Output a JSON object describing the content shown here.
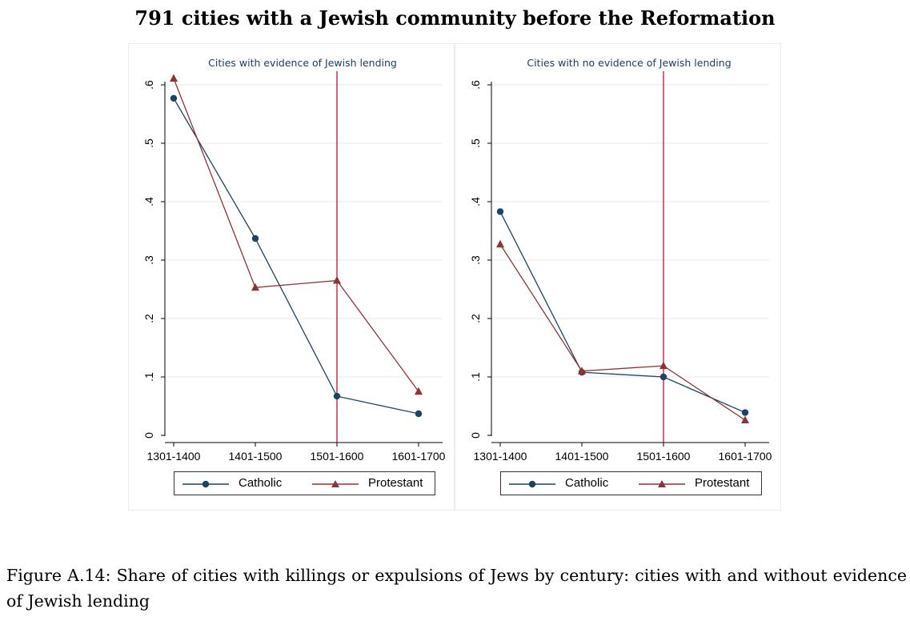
{
  "title": "791 cities with a Jewish community before the Reformation",
  "caption": "Figure A.14: Share of cities with killings or expulsions of Jews by century: cities with and without evidence of Jewish lending",
  "colors": {
    "catholic": "#1a4466",
    "protestant": "#903333",
    "reform_line": "#c8102e",
    "grid": "#eaeaea"
  },
  "chart_data": [
    {
      "type": "line",
      "title": "Cities with evidence of Jewish lending",
      "categories": [
        "1301-1400",
        "1401-1500",
        "1501-1600",
        "1601-1700"
      ],
      "y_ticks": [
        "0",
        ".1",
        ".2",
        ".3",
        ".4",
        ".5",
        ".6"
      ],
      "ylim": [
        0,
        0.6
      ],
      "vline_at": "1501-1600",
      "legend_position": "bottom",
      "series": [
        {
          "name": "Catholic",
          "marker": "circle",
          "values": [
            0.577,
            0.337,
            0.067,
            0.037
          ]
        },
        {
          "name": "Protestant",
          "marker": "triangle",
          "values": [
            0.611,
            0.253,
            0.265,
            0.075
          ]
        }
      ]
    },
    {
      "type": "line",
      "title": "Cities with no evidence of Jewish lending",
      "categories": [
        "1301-1400",
        "1401-1500",
        "1501-1600",
        "1601-1700"
      ],
      "y_ticks": [
        "0",
        ".1",
        ".2",
        ".3",
        ".4",
        ".5",
        ".6"
      ],
      "ylim": [
        0,
        0.6
      ],
      "vline_at": "1501-1600",
      "legend_position": "bottom",
      "series": [
        {
          "name": "Catholic",
          "marker": "circle",
          "values": [
            0.383,
            0.108,
            0.1,
            0.039
          ]
        },
        {
          "name": "Protestant",
          "marker": "triangle",
          "values": [
            0.327,
            0.11,
            0.119,
            0.026
          ]
        }
      ]
    }
  ]
}
